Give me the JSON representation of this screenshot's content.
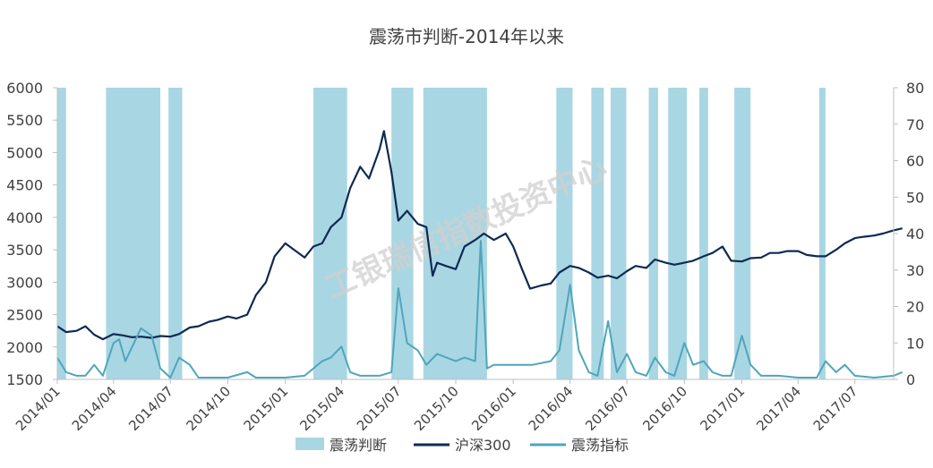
{
  "chart_data": {
    "type": "line",
    "title": "震荡市判断-2014年以来",
    "x_tick_labels": [
      "2014/01",
      "2014/04",
      "2014/07",
      "2014/10",
      "2015/01",
      "2015/04",
      "2015/07",
      "2015/10",
      "2016/01",
      "2016/04",
      "2016/07",
      "2016/10",
      "2017/01",
      "2017/04",
      "2017/07"
    ],
    "x_range": [
      "2014/01",
      "2017/09"
    ],
    "y_left": {
      "ticks": [
        1500,
        2000,
        2500,
        3000,
        3500,
        4000,
        4500,
        5000,
        5500,
        6000
      ],
      "range": [
        1500,
        6000
      ]
    },
    "y_right": {
      "ticks": [
        0,
        10,
        20,
        30,
        40,
        50,
        60,
        70,
        80
      ],
      "range": [
        0,
        80
      ]
    },
    "grid": false,
    "legend_position": "bottom",
    "colors": {
      "bands": "#a9d6e3",
      "hs300": "#0e2a52",
      "indicator": "#4ea6bb"
    },
    "legend": [
      {
        "key": "bands",
        "label": "震荡判断"
      },
      {
        "key": "hs300",
        "label": "沪深300"
      },
      {
        "key": "indicator",
        "label": "震荡指标"
      }
    ],
    "watermark": "工银瑞信指数投资中心",
    "series": [
      {
        "key": "hs300",
        "name": "沪深300",
        "axis": "left",
        "points": [
          [
            "2014/01/01",
            2320
          ],
          [
            "2014/01/15",
            2230
          ],
          [
            "2014/02/01",
            2250
          ],
          [
            "2014/02/15",
            2320
          ],
          [
            "2014/03/01",
            2190
          ],
          [
            "2014/03/15",
            2120
          ],
          [
            "2014/04/01",
            2200
          ],
          [
            "2014/04/15",
            2180
          ],
          [
            "2014/05/01",
            2150
          ],
          [
            "2014/05/15",
            2160
          ],
          [
            "2014/06/01",
            2140
          ],
          [
            "2014/06/15",
            2170
          ],
          [
            "2014/07/01",
            2160
          ],
          [
            "2014/07/15",
            2200
          ],
          [
            "2014/08/01",
            2300
          ],
          [
            "2014/08/15",
            2320
          ],
          [
            "2014/09/01",
            2390
          ],
          [
            "2014/09/15",
            2420
          ],
          [
            "2014/10/01",
            2470
          ],
          [
            "2014/10/15",
            2440
          ],
          [
            "2014/11/01",
            2500
          ],
          [
            "2014/11/15",
            2800
          ],
          [
            "2014/12/01",
            3000
          ],
          [
            "2014/12/15",
            3400
          ],
          [
            "2015/01/01",
            3600
          ],
          [
            "2015/01/15",
            3500
          ],
          [
            "2015/02/01",
            3380
          ],
          [
            "2015/02/15",
            3550
          ],
          [
            "2015/03/01",
            3600
          ],
          [
            "2015/03/15",
            3850
          ],
          [
            "2015/04/01",
            4000
          ],
          [
            "2015/04/15",
            4450
          ],
          [
            "2015/05/01",
            4780
          ],
          [
            "2015/05/15",
            4600
          ],
          [
            "2015/06/01",
            5050
          ],
          [
            "2015/06/08",
            5330
          ],
          [
            "2015/06/20",
            4700
          ],
          [
            "2015/07/01",
            3950
          ],
          [
            "2015/07/15",
            4100
          ],
          [
            "2015/08/01",
            3900
          ],
          [
            "2015/08/15",
            3850
          ],
          [
            "2015/08/25",
            3100
          ],
          [
            "2015/09/01",
            3300
          ],
          [
            "2015/09/15",
            3250
          ],
          [
            "2015/10/01",
            3200
          ],
          [
            "2015/10/15",
            3550
          ],
          [
            "2015/11/01",
            3650
          ],
          [
            "2015/11/15",
            3750
          ],
          [
            "2015/12/01",
            3650
          ],
          [
            "2015/12/20",
            3750
          ],
          [
            "2016/01/01",
            3550
          ],
          [
            "2016/01/15",
            3200
          ],
          [
            "2016/01/28",
            2900
          ],
          [
            "2016/02/15",
            2950
          ],
          [
            "2016/03/01",
            2980
          ],
          [
            "2016/03/15",
            3150
          ],
          [
            "2016/04/01",
            3250
          ],
          [
            "2016/04/15",
            3220
          ],
          [
            "2016/05/01",
            3150
          ],
          [
            "2016/05/15",
            3070
          ],
          [
            "2016/06/01",
            3100
          ],
          [
            "2016/06/15",
            3060
          ],
          [
            "2016/07/01",
            3170
          ],
          [
            "2016/07/15",
            3250
          ],
          [
            "2016/08/01",
            3220
          ],
          [
            "2016/08/15",
            3350
          ],
          [
            "2016/09/01",
            3300
          ],
          [
            "2016/09/15",
            3270
          ],
          [
            "2016/10/01",
            3300
          ],
          [
            "2016/10/15",
            3330
          ],
          [
            "2016/11/01",
            3400
          ],
          [
            "2016/11/15",
            3450
          ],
          [
            "2016/12/01",
            3550
          ],
          [
            "2016/12/15",
            3330
          ],
          [
            "2017/01/01",
            3320
          ],
          [
            "2017/01/15",
            3370
          ],
          [
            "2017/02/01",
            3380
          ],
          [
            "2017/02/15",
            3450
          ],
          [
            "2017/03/01",
            3450
          ],
          [
            "2017/03/15",
            3480
          ],
          [
            "2017/04/01",
            3480
          ],
          [
            "2017/04/15",
            3420
          ],
          [
            "2017/05/01",
            3400
          ],
          [
            "2017/05/15",
            3400
          ],
          [
            "2017/06/01",
            3500
          ],
          [
            "2017/06/15",
            3600
          ],
          [
            "2017/07/01",
            3680
          ],
          [
            "2017/07/15",
            3700
          ],
          [
            "2017/08/01",
            3720
          ],
          [
            "2017/08/15",
            3750
          ],
          [
            "2017/09/01",
            3800
          ],
          [
            "2017/09/15",
            3830
          ]
        ]
      },
      {
        "key": "indicator",
        "name": "震荡指标",
        "axis": "right",
        "points": [
          [
            "2014/01/01",
            6
          ],
          [
            "2014/01/15",
            2
          ],
          [
            "2014/02/01",
            1
          ],
          [
            "2014/02/15",
            1
          ],
          [
            "2014/03/01",
            4
          ],
          [
            "2014/03/15",
            1
          ],
          [
            "2014/04/01",
            10
          ],
          [
            "2014/04/10",
            11
          ],
          [
            "2014/04/20",
            5
          ],
          [
            "2014/05/01",
            9
          ],
          [
            "2014/05/15",
            14
          ],
          [
            "2014/06/01",
            12
          ],
          [
            "2014/06/15",
            3
          ],
          [
            "2014/07/01",
            0.5
          ],
          [
            "2014/07/15",
            6
          ],
          [
            "2014/08/01",
            4
          ],
          [
            "2014/08/15",
            0.5
          ],
          [
            "2014/09/01",
            0.5
          ],
          [
            "2014/10/01",
            0.5
          ],
          [
            "2014/11/01",
            2
          ],
          [
            "2014/11/15",
            0.5
          ],
          [
            "2014/12/01",
            0.5
          ],
          [
            "2015/01/01",
            0.5
          ],
          [
            "2015/02/01",
            1
          ],
          [
            "2015/03/01",
            5
          ],
          [
            "2015/03/15",
            6
          ],
          [
            "2015/04/01",
            9
          ],
          [
            "2015/04/15",
            2
          ],
          [
            "2015/05/01",
            1
          ],
          [
            "2015/06/01",
            1
          ],
          [
            "2015/06/20",
            2
          ],
          [
            "2015/07/01",
            25
          ],
          [
            "2015/07/15",
            10
          ],
          [
            "2015/08/01",
            8
          ],
          [
            "2015/08/15",
            4
          ],
          [
            "2015/09/01",
            7
          ],
          [
            "2015/10/01",
            5
          ],
          [
            "2015/10/15",
            6
          ],
          [
            "2015/11/01",
            5
          ],
          [
            "2015/11/10",
            38
          ],
          [
            "2015/11/20",
            3
          ],
          [
            "2015/12/01",
            4
          ],
          [
            "2016/01/01",
            4
          ],
          [
            "2016/02/01",
            4
          ],
          [
            "2016/03/01",
            5
          ],
          [
            "2016/03/15",
            8
          ],
          [
            "2016/04/01",
            26
          ],
          [
            "2016/04/15",
            8
          ],
          [
            "2016/05/01",
            2
          ],
          [
            "2016/05/15",
            1
          ],
          [
            "2016/06/01",
            16
          ],
          [
            "2016/06/15",
            2
          ],
          [
            "2016/07/01",
            7
          ],
          [
            "2016/07/15",
            2
          ],
          [
            "2016/08/01",
            1
          ],
          [
            "2016/08/15",
            6
          ],
          [
            "2016/09/01",
            2
          ],
          [
            "2016/09/15",
            1
          ],
          [
            "2016/10/01",
            10
          ],
          [
            "2016/10/15",
            4
          ],
          [
            "2016/11/01",
            5
          ],
          [
            "2016/11/15",
            2
          ],
          [
            "2016/12/01",
            1
          ],
          [
            "2016/12/15",
            1
          ],
          [
            "2017/01/01",
            12
          ],
          [
            "2017/01/15",
            4
          ],
          [
            "2017/02/01",
            1
          ],
          [
            "2017/02/15",
            1
          ],
          [
            "2017/03/01",
            1
          ],
          [
            "2017/04/01",
            0.5
          ],
          [
            "2017/05/01",
            0.5
          ],
          [
            "2017/05/15",
            5
          ],
          [
            "2017/06/01",
            2
          ],
          [
            "2017/06/15",
            4
          ],
          [
            "2017/07/01",
            1
          ],
          [
            "2017/08/01",
            0.5
          ],
          [
            "2017/09/01",
            1
          ],
          [
            "2017/09/15",
            2
          ]
        ]
      }
    ],
    "bands": [
      [
        "2014/01/01",
        "2014/01/15"
      ],
      [
        "2014/03/20",
        "2014/06/15"
      ],
      [
        "2014/06/28",
        "2014/07/20"
      ],
      [
        "2015/02/15",
        "2015/04/10"
      ],
      [
        "2015/06/20",
        "2015/07/25"
      ],
      [
        "2015/08/10",
        "2015/11/20"
      ],
      [
        "2016/03/10",
        "2016/04/05"
      ],
      [
        "2016/05/05",
        "2016/05/25"
      ],
      [
        "2016/06/05",
        "2016/06/30"
      ],
      [
        "2016/08/05",
        "2016/08/20"
      ],
      [
        "2016/09/05",
        "2016/10/05"
      ],
      [
        "2016/10/25",
        "2016/11/08"
      ],
      [
        "2016/12/20",
        "2017/01/15"
      ],
      [
        "2017/05/05",
        "2017/05/15"
      ]
    ]
  }
}
